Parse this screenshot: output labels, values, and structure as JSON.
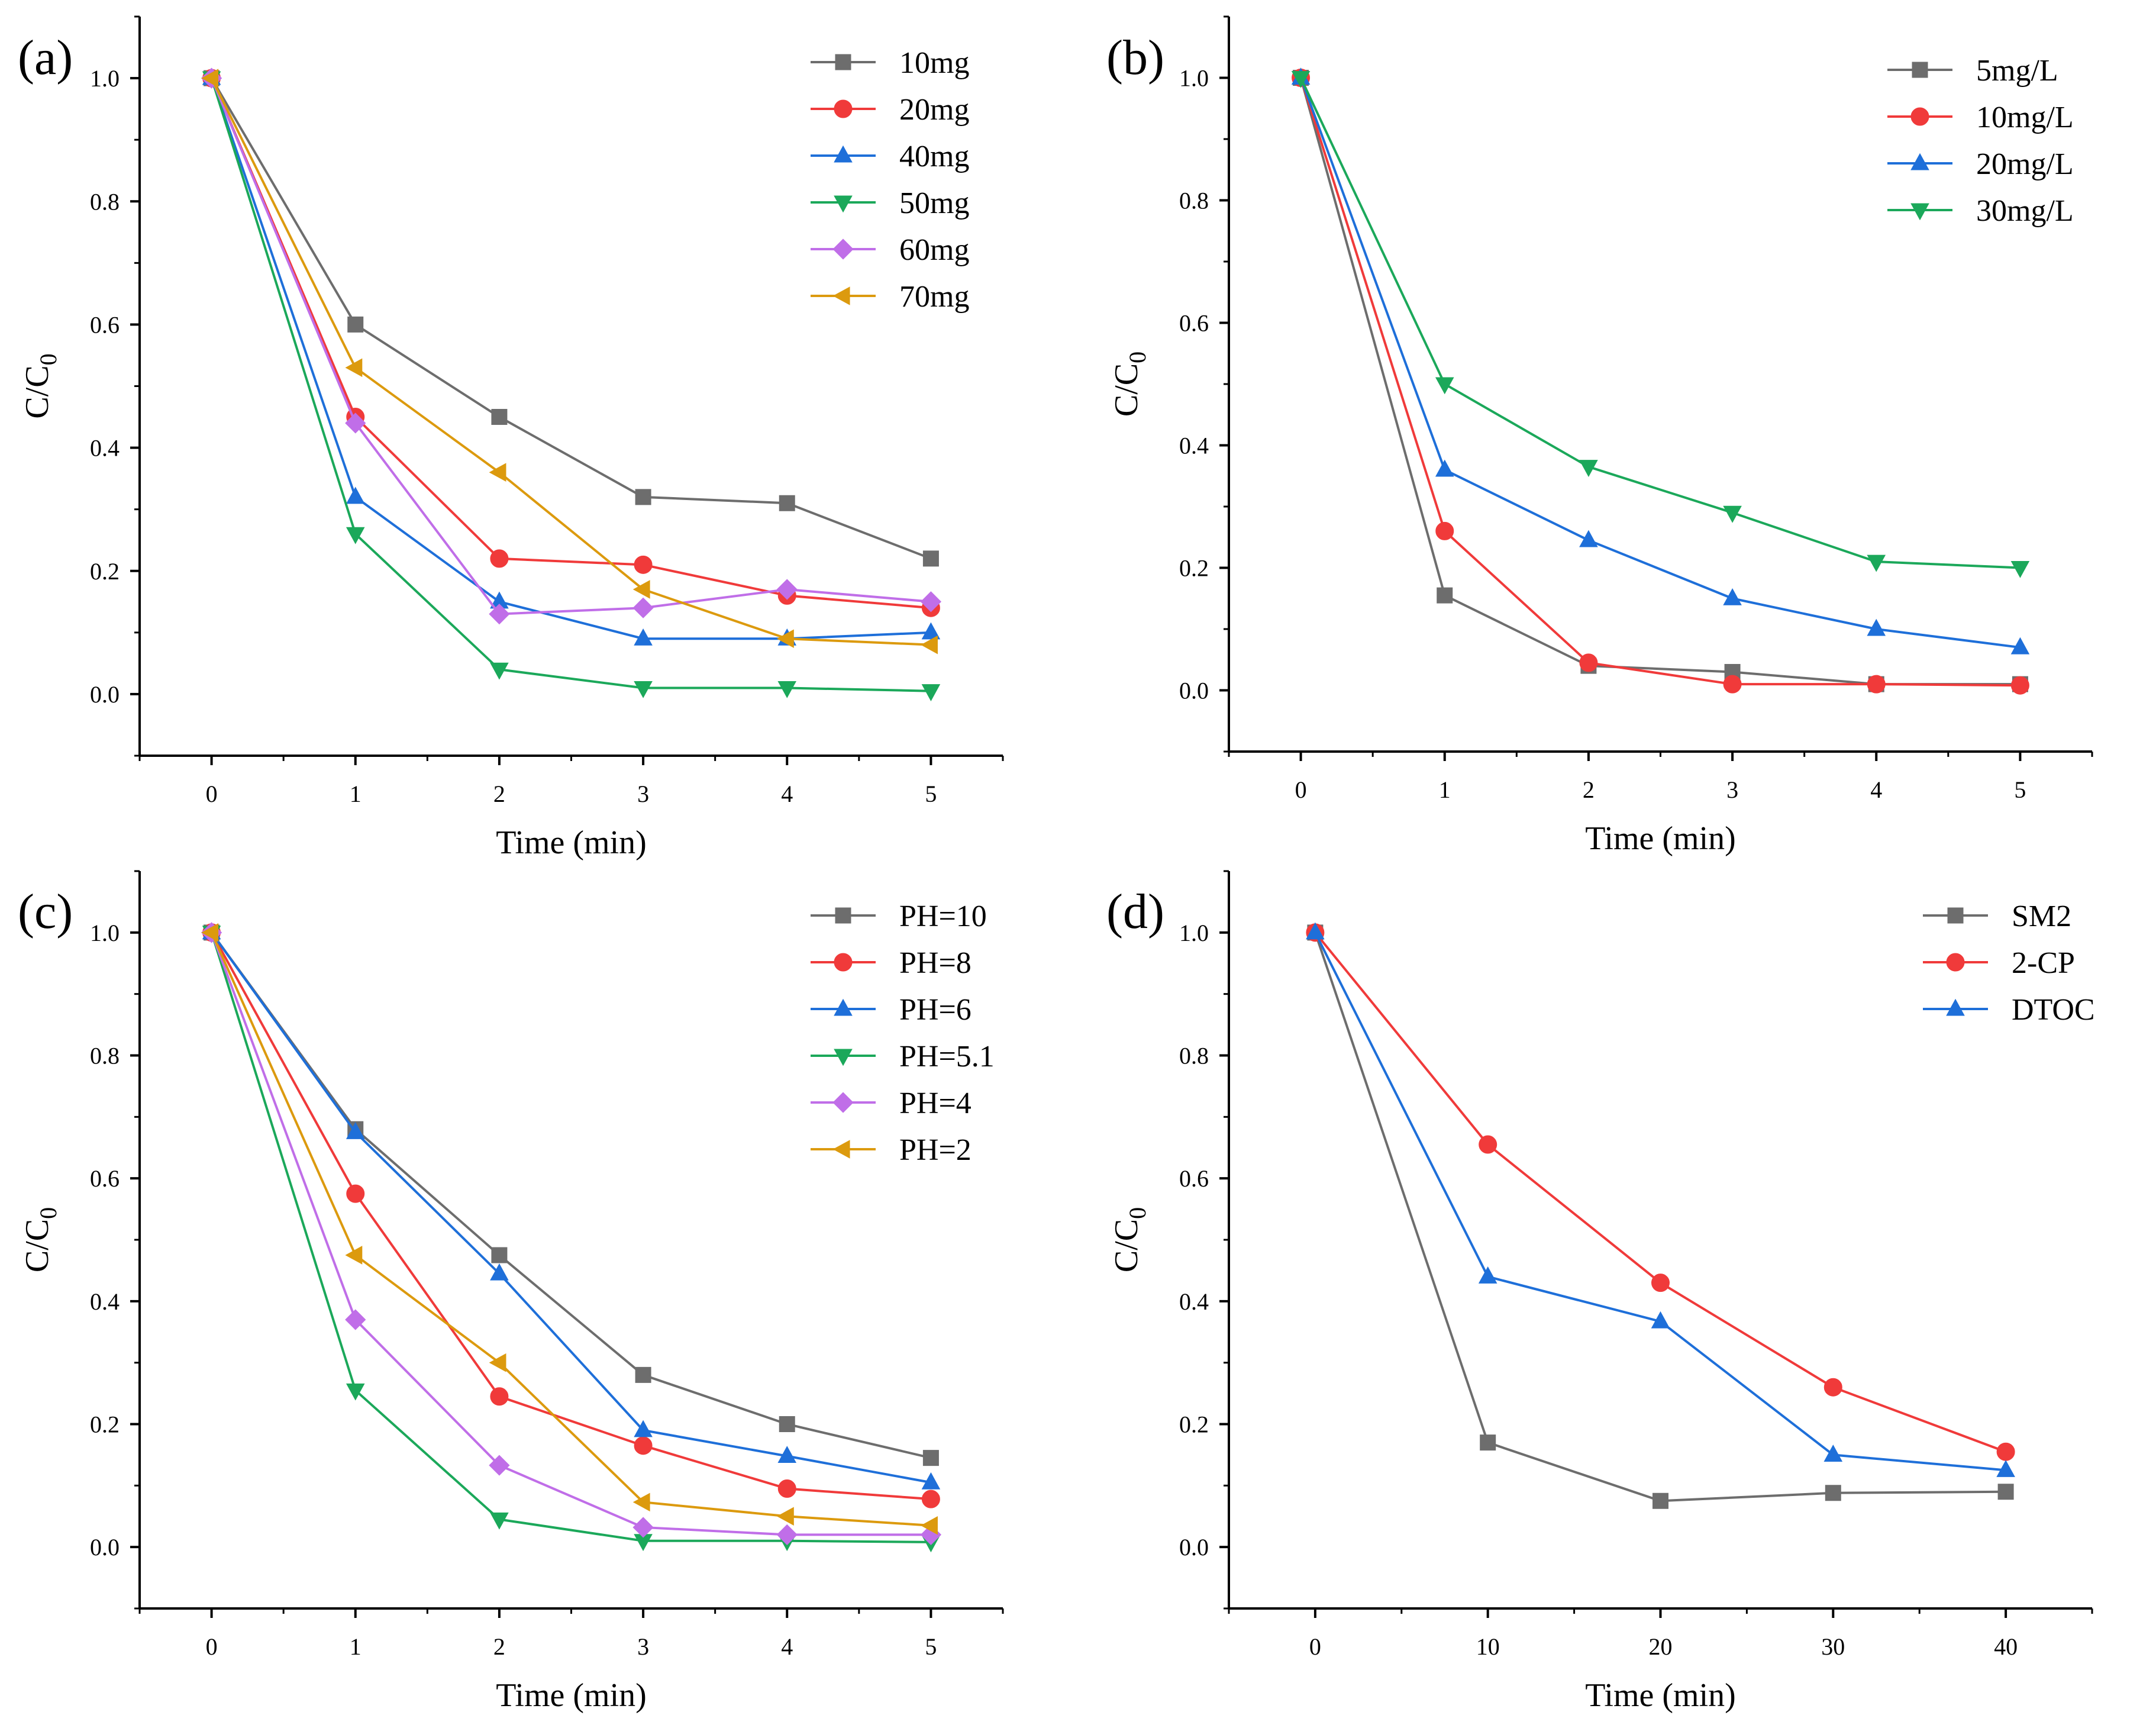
{
  "figure": {
    "colors": {
      "gray": "#6d6d6d",
      "red": "#f03a3a",
      "blue": "#1e6fd9",
      "green": "#1ba85a",
      "violet": "#c06ee8",
      "orange": "#dc9a0e"
    }
  },
  "chart_data": [
    {
      "panel": "(a)",
      "type": "line",
      "xlabel": "Time (min)",
      "ylabel_main": "C/C",
      "ylabel_sub": "0",
      "xlim": [
        -0.5,
        5.5
      ],
      "ylim": [
        -0.1,
        1.1
      ],
      "xticks": [
        0,
        1,
        2,
        3,
        4,
        5
      ],
      "xtick_labels": [
        "0",
        "1",
        "2",
        "3",
        "4",
        "5"
      ],
      "yticks": [
        0,
        0.2,
        0.4,
        0.6,
        0.8,
        1.0
      ],
      "ytick_labels": [
        "0.0",
        "0.2",
        "0.4",
        "0.6",
        "0.8",
        "1.0"
      ],
      "legend_position": "top-right",
      "x": [
        0,
        1,
        2,
        3,
        4,
        5
      ],
      "series": [
        {
          "name": "10mg",
          "color": "gray",
          "marker": "square",
          "values": [
            1.0,
            0.6,
            0.45,
            0.32,
            0.31,
            0.22
          ]
        },
        {
          "name": "20mg",
          "color": "red",
          "marker": "circle",
          "values": [
            1.0,
            0.45,
            0.22,
            0.21,
            0.16,
            0.14
          ]
        },
        {
          "name": "40mg",
          "color": "blue",
          "marker": "triangle-up",
          "values": [
            1.0,
            0.32,
            0.15,
            0.09,
            0.09,
            0.1
          ]
        },
        {
          "name": "50mg",
          "color": "green",
          "marker": "triangle-down",
          "values": [
            1.0,
            0.26,
            0.04,
            0.01,
            0.01,
            0.005
          ]
        },
        {
          "name": "60mg",
          "color": "violet",
          "marker": "diamond",
          "values": [
            1.0,
            0.44,
            0.13,
            0.14,
            0.17,
            0.15
          ]
        },
        {
          "name": "70mg",
          "color": "orange",
          "marker": "triangle-left",
          "values": [
            1.0,
            0.53,
            0.36,
            0.17,
            0.09,
            0.08
          ]
        }
      ]
    },
    {
      "panel": "(b)",
      "type": "line",
      "xlabel": "Time (min)",
      "ylabel_main": "C/C",
      "ylabel_sub": "0",
      "xlim": [
        -0.5,
        5.5
      ],
      "ylim": [
        -0.1,
        1.1
      ],
      "xticks": [
        0,
        1,
        2,
        3,
        4,
        5
      ],
      "xtick_labels": [
        "0",
        "1",
        "2",
        "3",
        "4",
        "5"
      ],
      "yticks": [
        0,
        0.2,
        0.4,
        0.6,
        0.8,
        1.0
      ],
      "ytick_labels": [
        "0.0",
        "0.2",
        "0.4",
        "0.6",
        "0.8",
        "1.0"
      ],
      "legend_position": "top-right",
      "x": [
        0,
        1,
        2,
        3,
        4,
        5
      ],
      "series": [
        {
          "name": "5mg/L",
          "color": "gray",
          "marker": "square",
          "values": [
            1.0,
            0.155,
            0.04,
            0.03,
            0.01,
            0.01
          ]
        },
        {
          "name": "10mg/L",
          "color": "red",
          "marker": "circle",
          "values": [
            1.0,
            0.26,
            0.045,
            0.01,
            0.01,
            0.008
          ]
        },
        {
          "name": "20mg/L",
          "color": "blue",
          "marker": "triangle-up",
          "values": [
            1.0,
            0.36,
            0.245,
            0.15,
            0.1,
            0.07
          ]
        },
        {
          "name": "30mg/L",
          "color": "green",
          "marker": "triangle-down",
          "values": [
            1.0,
            0.5,
            0.365,
            0.29,
            0.21,
            0.2
          ]
        }
      ]
    },
    {
      "panel": "(c)",
      "type": "line",
      "xlabel": "Time (min)",
      "ylabel_main": "C/C",
      "ylabel_sub": "0",
      "xlim": [
        -0.5,
        5.5
      ],
      "ylim": [
        -0.1,
        1.1
      ],
      "xticks": [
        0,
        1,
        2,
        3,
        4,
        5
      ],
      "xtick_labels": [
        "0",
        "1",
        "2",
        "3",
        "4",
        "5"
      ],
      "yticks": [
        0,
        0.2,
        0.4,
        0.6,
        0.8,
        1.0
      ],
      "ytick_labels": [
        "0.0",
        "0.2",
        "0.4",
        "0.6",
        "0.8",
        "1.0"
      ],
      "legend_position": "top-right",
      "x": [
        0,
        1,
        2,
        3,
        4,
        5
      ],
      "series": [
        {
          "name": "PH=10",
          "color": "gray",
          "marker": "square",
          "values": [
            1.0,
            0.68,
            0.475,
            0.28,
            0.2,
            0.145
          ]
        },
        {
          "name": "PH=8",
          "color": "red",
          "marker": "circle",
          "values": [
            1.0,
            0.575,
            0.245,
            0.165,
            0.095,
            0.078
          ]
        },
        {
          "name": "PH=6",
          "color": "blue",
          "marker": "triangle-up",
          "values": [
            1.0,
            0.675,
            0.445,
            0.19,
            0.148,
            0.105
          ]
        },
        {
          "name": "PH=5.1",
          "color": "green",
          "marker": "triangle-down",
          "values": [
            1.0,
            0.255,
            0.045,
            0.01,
            0.01,
            0.008
          ]
        },
        {
          "name": "PH=4",
          "color": "violet",
          "marker": "diamond",
          "values": [
            1.0,
            0.37,
            0.133,
            0.032,
            0.02,
            0.02
          ]
        },
        {
          "name": "PH=2",
          "color": "orange",
          "marker": "triangle-left",
          "values": [
            1.0,
            0.475,
            0.3,
            0.073,
            0.05,
            0.035
          ]
        }
      ]
    },
    {
      "panel": "(d)",
      "type": "line",
      "xlabel": "Time (min)",
      "ylabel_main": "C/C",
      "ylabel_sub": "0",
      "xlim": [
        -5,
        45
      ],
      "ylim": [
        -0.1,
        1.1
      ],
      "xticks": [
        0,
        10,
        20,
        30,
        40
      ],
      "xtick_labels": [
        "0",
        "10",
        "20",
        "30",
        "40"
      ],
      "yticks": [
        0,
        0.2,
        0.4,
        0.6,
        0.8,
        1.0
      ],
      "ytick_labels": [
        "0.0",
        "0.2",
        "0.4",
        "0.6",
        "0.8",
        "1.0"
      ],
      "legend_position": "top-right",
      "x": [
        0,
        10,
        20,
        30,
        40
      ],
      "series": [
        {
          "name": "SM2",
          "color": "gray",
          "marker": "square",
          "values": [
            1.0,
            0.17,
            0.075,
            0.088,
            0.09
          ]
        },
        {
          "name": "2-CP",
          "color": "red",
          "marker": "circle",
          "values": [
            1.0,
            0.655,
            0.43,
            0.26,
            0.155
          ]
        },
        {
          "name": "DTOC",
          "color": "blue",
          "marker": "triangle-up",
          "values": [
            1.0,
            0.44,
            0.367,
            0.15,
            0.125
          ]
        }
      ]
    }
  ]
}
